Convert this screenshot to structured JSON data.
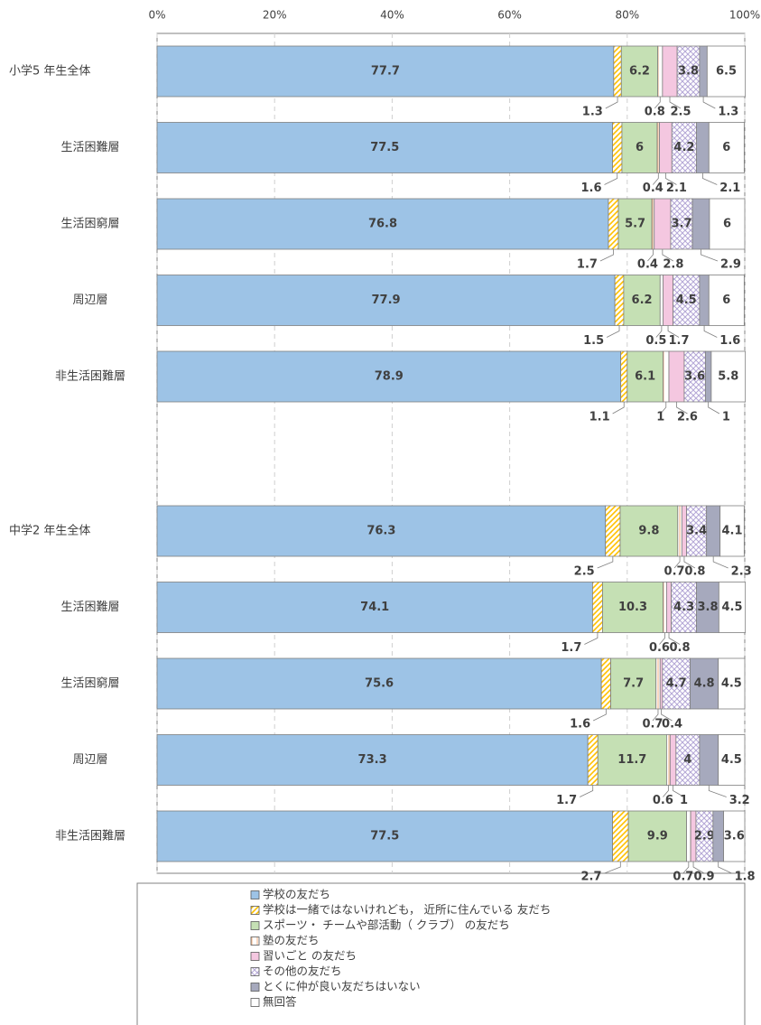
{
  "chart_data": {
    "type": "stacked-bar-horizontal",
    "categories": [
      "小学5 年生全体",
      "生活困難層",
      "生活困窮層",
      "周辺層",
      "非生活困難層",
      "中学2 年生全体",
      "生活困難層",
      "生活困窮層",
      "周辺層",
      "非生活困難層"
    ],
    "series": [
      {
        "name": "学校の友だち",
        "color": "#9dc3e6",
        "values": [
          77.7,
          77.5,
          76.8,
          77.9,
          78.9,
          76.3,
          74.1,
          75.6,
          73.3,
          77.5
        ]
      },
      {
        "name": "学校は一緒ではないけれども， 近所に住んでいる 友だち",
        "color": "#ffc000",
        "pattern": "diagonal",
        "values": [
          1.3,
          1.6,
          1.7,
          1.5,
          1.1,
          2.5,
          1.7,
          1.6,
          1.7,
          2.7
        ]
      },
      {
        "name": "スポーツ・ チームや部活動（ クラブ） の友だち",
        "color": "#c5e0b4",
        "values": [
          6.2,
          6.0,
          5.7,
          6.2,
          6.1,
          9.8,
          10.3,
          7.7,
          11.7,
          9.9
        ]
      },
      {
        "name": "塾の友だち",
        "color": "#f4b183",
        "pattern": "vertical",
        "values": [
          0.8,
          0.4,
          0.4,
          0.5,
          1.0,
          0.7,
          0.6,
          0.7,
          0.6,
          0.7
        ]
      },
      {
        "name": "習いごと の友だち",
        "color": "#f4c7e0",
        "values": [
          2.5,
          2.1,
          2.8,
          1.7,
          2.6,
          0.8,
          0.8,
          0.4,
          1.0,
          0.9
        ]
      },
      {
        "name": "その他の友だち",
        "color": "#b4a7d6",
        "pattern": "cross",
        "values": [
          3.8,
          4.2,
          3.7,
          4.5,
          3.6,
          3.4,
          4.3,
          4.7,
          4.0,
          2.9
        ]
      },
      {
        "name": "とくに仲が良い友だちはいない",
        "color": "#a6a9bd",
        "values": [
          1.3,
          2.1,
          2.9,
          1.6,
          1.0,
          2.3,
          3.8,
          4.8,
          3.2,
          1.8
        ]
      },
      {
        "name": "無回答",
        "color": "#ffffff",
        "values": [
          6.5,
          6.0,
          6.0,
          6.0,
          5.8,
          4.1,
          4.5,
          4.5,
          4.5,
          3.6
        ]
      }
    ],
    "xlim": [
      0,
      100
    ],
    "xticks": [
      {
        "value": 0,
        "label": "0%"
      },
      {
        "value": 20,
        "label": "20%"
      },
      {
        "value": 40,
        "label": "40%"
      },
      {
        "value": 60,
        "label": "60%"
      },
      {
        "value": 80,
        "label": "80%"
      },
      {
        "value": 100,
        "label": "100%"
      }
    ],
    "grid": true
  }
}
